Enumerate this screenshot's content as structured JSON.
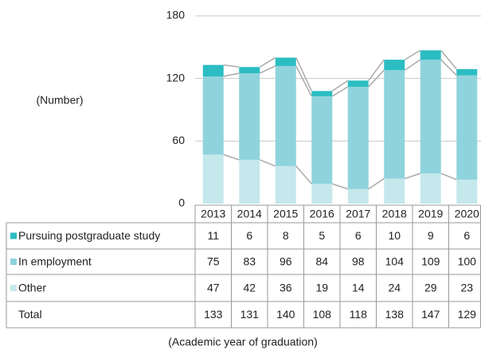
{
  "chart_data": {
    "type": "bar",
    "stacked": true,
    "y_label": "(Number)",
    "x_label": "(Academic year of graduation)",
    "categories": [
      "2013",
      "2014",
      "2015",
      "2016",
      "2017",
      "2018",
      "2019",
      "2020"
    ],
    "series": [
      {
        "name": "Pursuing postgraduate study",
        "color": "#2bbdc2",
        "values": [
          11,
          6,
          8,
          5,
          6,
          10,
          9,
          6
        ]
      },
      {
        "name": "In employment",
        "color": "#8fd3dc",
        "values": [
          75,
          83,
          96,
          84,
          98,
          104,
          109,
          100
        ]
      },
      {
        "name": "Other",
        "color": "#c5e8ec",
        "values": [
          47,
          42,
          36,
          19,
          14,
          24,
          29,
          23
        ]
      }
    ],
    "total_label": "Total",
    "totals": [
      133,
      131,
      140,
      108,
      118,
      138,
      147,
      129
    ],
    "ylim": [
      0,
      180
    ],
    "yticks": [
      0,
      60,
      120,
      180
    ],
    "grid": true,
    "connector_color": "#aaaaaa"
  }
}
